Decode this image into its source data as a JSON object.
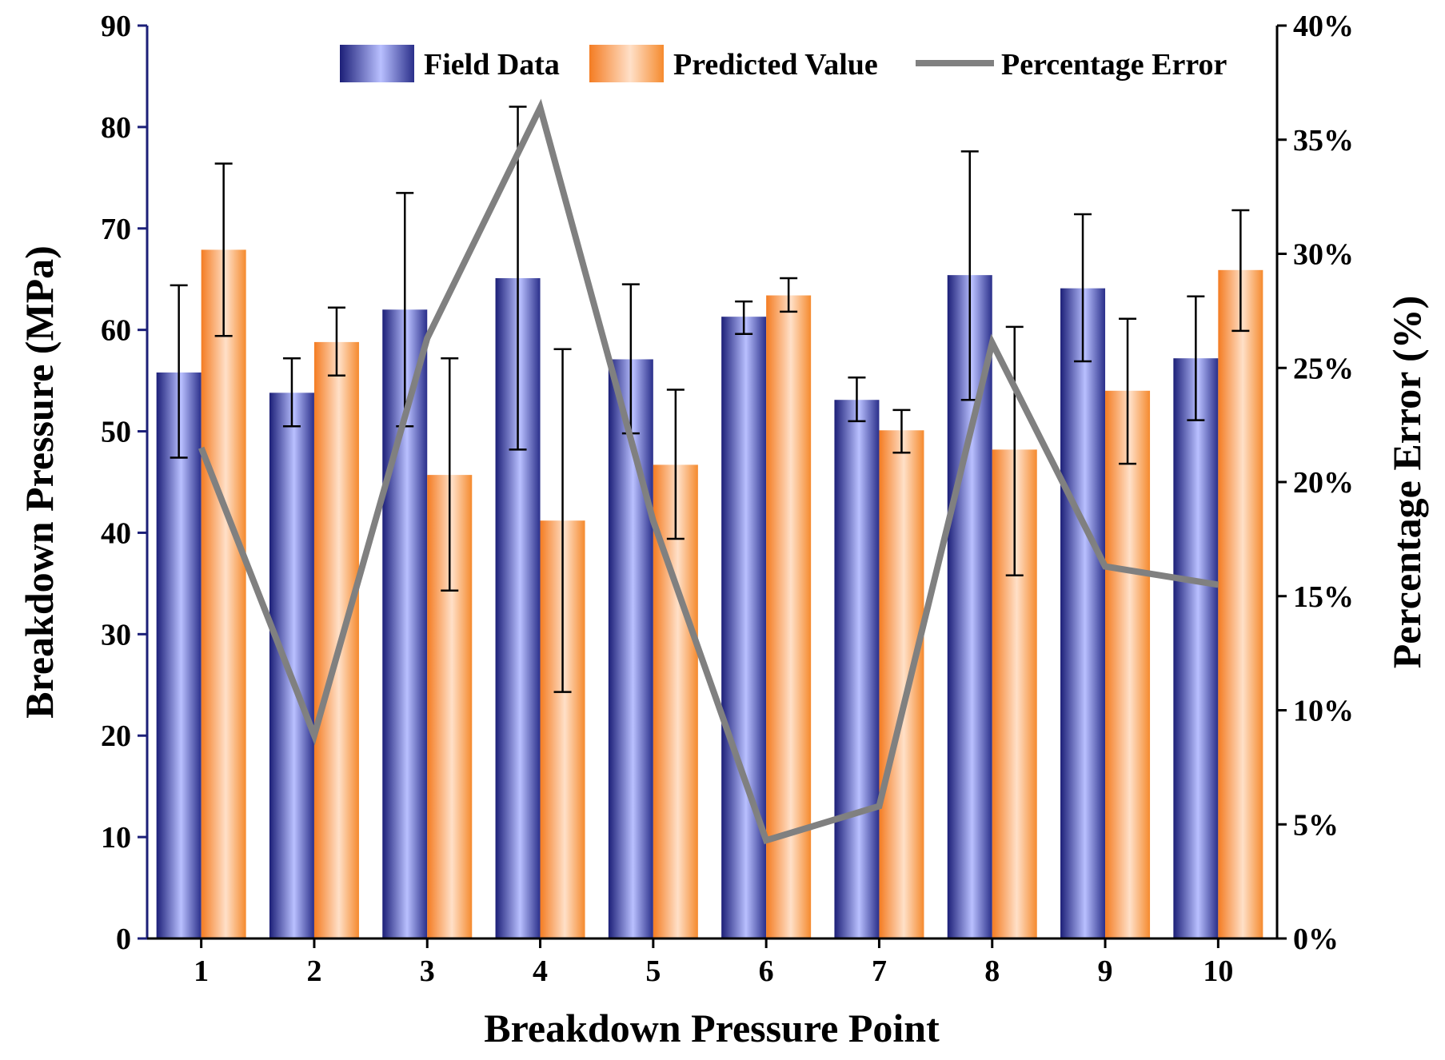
{
  "chart_data": {
    "type": "bar",
    "title": "",
    "categories": [
      "1",
      "2",
      "3",
      "4",
      "5",
      "6",
      "7",
      "8",
      "9",
      "10"
    ],
    "xlabel": "Breakdown Pressure Point",
    "ylabel": "Breakdown Pressure (MPa)",
    "y2label": "Percentage Error (%)",
    "ylim": [
      0,
      90
    ],
    "y2lim": [
      0,
      40
    ],
    "yticks": [
      "0",
      "10",
      "20",
      "30",
      "40",
      "50",
      "60",
      "70",
      "80",
      "90"
    ],
    "y2ticks": [
      "0%",
      "5%",
      "10%",
      "15%",
      "20%",
      "25%",
      "30%",
      "35%",
      "40%"
    ],
    "legend_position": "top-right",
    "grid": false,
    "series": [
      {
        "name": "Field Data",
        "kind": "bar",
        "axis": "left",
        "color": "#2a2f8a",
        "values": [
          55.8,
          53.8,
          62.0,
          65.1,
          57.1,
          61.3,
          53.1,
          65.4,
          64.1,
          57.2
        ],
        "error_low": [
          47.4,
          50.5,
          50.5,
          48.2,
          49.8,
          59.6,
          51.0,
          53.1,
          56.9,
          51.1
        ],
        "error_high": [
          64.4,
          57.2,
          73.5,
          82.0,
          64.5,
          62.8,
          55.3,
          77.6,
          71.4,
          63.3
        ]
      },
      {
        "name": "Predicted Value",
        "kind": "bar",
        "axis": "left",
        "color": "#f58a2e",
        "values": [
          67.9,
          58.8,
          45.7,
          41.2,
          46.7,
          63.4,
          50.1,
          48.2,
          54.0,
          65.9
        ],
        "error_low": [
          59.4,
          55.5,
          34.3,
          24.3,
          39.4,
          61.8,
          47.9,
          35.8,
          46.8,
          59.9
        ],
        "error_high": [
          76.4,
          62.2,
          57.2,
          58.1,
          54.1,
          65.1,
          52.1,
          60.3,
          61.1,
          71.8
        ]
      },
      {
        "name": "Percentage Error",
        "kind": "line",
        "axis": "right",
        "color": "#808080",
        "values": [
          21.5,
          8.9,
          26.3,
          36.4,
          18.3,
          4.3,
          5.8,
          26.1,
          16.3,
          15.5
        ]
      }
    ]
  }
}
